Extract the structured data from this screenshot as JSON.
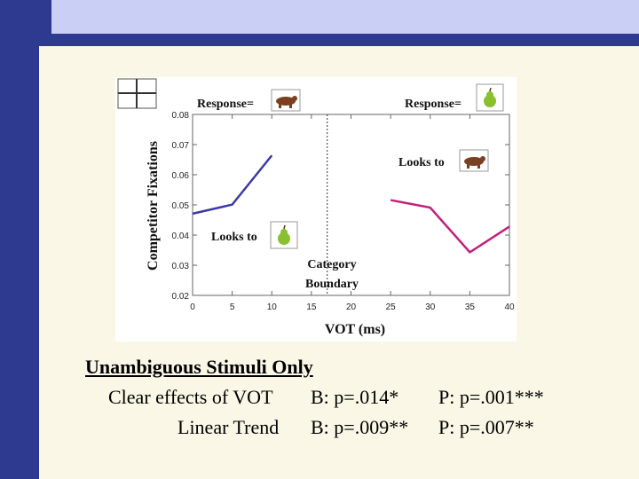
{
  "chart_data": {
    "type": "line",
    "title": "",
    "xlabel": "VOT (ms)",
    "ylabel": "Competitor Fixations",
    "xlim": [
      0,
      40
    ],
    "ylim": [
      0.02,
      0.08
    ],
    "x_ticks": [
      0,
      5,
      10,
      15,
      20,
      25,
      30,
      35,
      40
    ],
    "y_ticks": [
      "0.02",
      "0.03",
      "0.04",
      "0.05",
      "0.06",
      "0.07",
      "0.08"
    ],
    "series": [
      {
        "x": [
          0,
          5,
          10
        ],
        "y": [
          0.0471,
          0.0501,
          0.0664
        ],
        "color": "#3a3aa8"
      },
      {
        "x": [
          25,
          30,
          35,
          40
        ],
        "y": [
          0.0516,
          0.0491,
          0.0343,
          0.0428
        ],
        "color": "#c0207a"
      }
    ],
    "boundary_x": 17,
    "annotations": {
      "response_left": "Response=",
      "response_right": "Response=",
      "looks_to_right": "Looks to",
      "looks_to_left": "Looks to",
      "category_boundary_line1": "Category",
      "category_boundary_line2": "Boundary"
    },
    "icons": {
      "response_left": "bear-icon",
      "response_right": "pear-icon",
      "looks_to_right": "bear-icon",
      "looks_to_left": "pear-icon"
    }
  },
  "summary": {
    "heading": "Unambiguous Stimuli Only",
    "rows": [
      {
        "label": "Clear effects of VOT",
        "b": "B: p=.014*",
        "p": "P: p=.001***"
      },
      {
        "label": "Linear Trend",
        "b": "B: p=.009**",
        "p": "P: p=.007**"
      }
    ]
  },
  "colors": {
    "left_series": "#3a3aa8",
    "right_series": "#c0207a",
    "sidebar": "#2e3a8f",
    "accent_panel": "#c9cff5"
  }
}
